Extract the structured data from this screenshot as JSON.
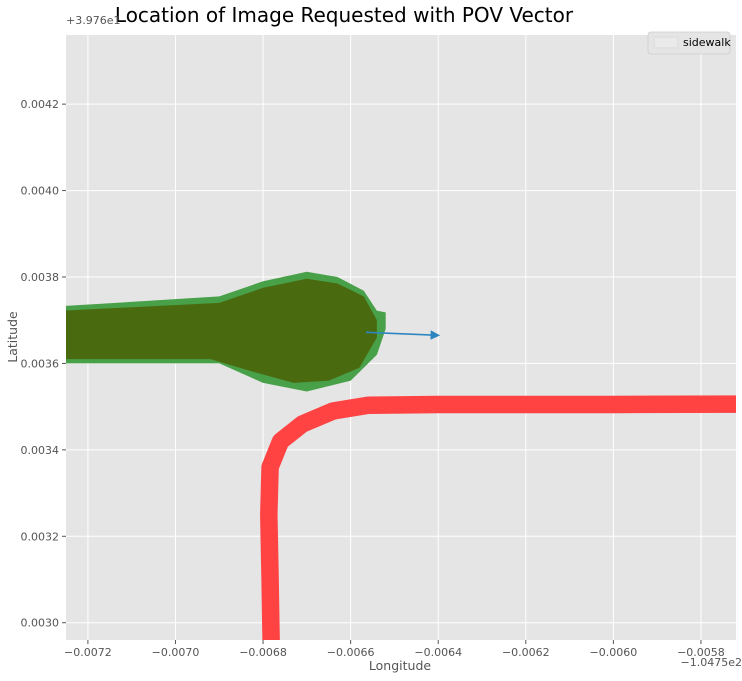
{
  "chart_data": {
    "type": "map-plot",
    "title": "Location of Image Requested with POV Vector",
    "xlabel": "Longitude",
    "ylabel": "Latitude",
    "x_offset_label": "−1.0475e2",
    "y_offset_label": "+3.976e1",
    "x_offset": -104.75,
    "y_offset": 39.76,
    "xlim": [
      -0.00725,
      -0.00572
    ],
    "ylim": [
      0.00296,
      0.00436
    ],
    "x_ticks": [
      -0.0072,
      -0.007,
      -0.0068,
      -0.0066,
      -0.0064,
      -0.0062,
      -0.006,
      -0.0058
    ],
    "x_tick_labels": [
      "−0.0072",
      "−0.0070",
      "−0.0068",
      "−0.0066",
      "−0.0064",
      "−0.0062",
      "−0.0060",
      "−0.0058"
    ],
    "y_ticks": [
      0.003,
      0.0032,
      0.0034,
      0.0036,
      0.0038,
      0.004,
      0.0042
    ],
    "y_tick_labels": [
      "0.0030",
      "0.0032",
      "0.0034",
      "0.0036",
      "0.0038",
      "0.0040",
      "0.0042"
    ],
    "grid": true,
    "legend_position": "top-right",
    "legend": [
      {
        "label": "sidewalk"
      }
    ],
    "shapes": [
      {
        "kind": "polygon",
        "fill": "#48a148",
        "points": [
          [
            -0.0073,
            0.00373
          ],
          [
            -0.0069,
            0.003755
          ],
          [
            -0.0068,
            0.00379
          ],
          [
            -0.0067,
            0.003812
          ],
          [
            -0.00663,
            0.0038
          ],
          [
            -0.00657,
            0.003768
          ],
          [
            -0.00654,
            0.003722
          ],
          [
            -0.00652,
            0.003718
          ],
          [
            -0.00652,
            0.00368
          ],
          [
            -0.00654,
            0.00362
          ],
          [
            -0.0066,
            0.00356
          ],
          [
            -0.0067,
            0.003535
          ],
          [
            -0.0068,
            0.003555
          ],
          [
            -0.0069,
            0.0036
          ],
          [
            -0.0073,
            0.0036
          ]
        ]
      },
      {
        "kind": "polygon",
        "fill": "#4a6a10",
        "points": [
          [
            -0.0073,
            0.00372
          ],
          [
            -0.0069,
            0.00374
          ],
          [
            -0.0068,
            0.003775
          ],
          [
            -0.0067,
            0.003796
          ],
          [
            -0.00663,
            0.003785
          ],
          [
            -0.00657,
            0.003755
          ],
          [
            -0.00654,
            0.0037
          ],
          [
            -0.00654,
            0.00366
          ],
          [
            -0.00658,
            0.00359
          ],
          [
            -0.00665,
            0.00356
          ],
          [
            -0.00673,
            0.003555
          ],
          [
            -0.00682,
            0.00358
          ],
          [
            -0.00692,
            0.00361
          ],
          [
            -0.0073,
            0.00361
          ]
        ]
      },
      {
        "kind": "line",
        "stroke": "#ff4242",
        "width": 4e-05,
        "points": [
          [
            -0.006781,
            0.00292
          ],
          [
            -0.006784,
            0.0031
          ],
          [
            -0.006787,
            0.00325
          ],
          [
            -0.006784,
            0.00336
          ],
          [
            -0.00676,
            0.00342
          ],
          [
            -0.00671,
            0.00346
          ],
          [
            -0.00664,
            0.00349
          ],
          [
            -0.00656,
            0.003503
          ],
          [
            -0.0064,
            0.003505
          ],
          [
            -0.006,
            0.003505
          ],
          [
            -0.00572,
            0.003506
          ]
        ]
      }
    ],
    "pov_vector": {
      "start": [
        -0.006565,
        0.003672
      ],
      "end": [
        -0.0064,
        0.003665
      ],
      "color": "#2e86c1"
    }
  }
}
